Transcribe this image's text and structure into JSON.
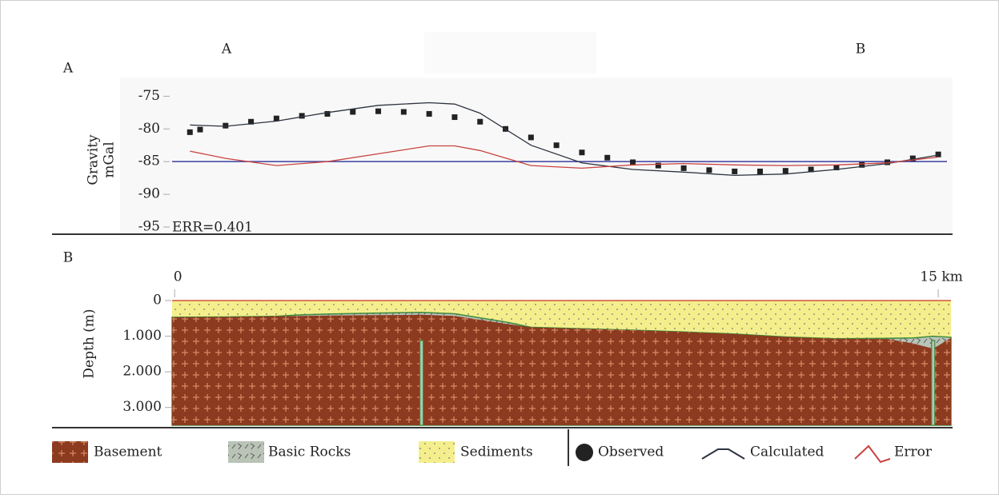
{
  "panel_labels": [
    "A",
    "B"
  ],
  "section_labels": [
    "A",
    "B"
  ],
  "legend_title_note": null,
  "chart_data": [
    {
      "type": "line",
      "ylabel": [
        "Gravity",
        "mGal"
      ],
      "annotation": "ERR=0.401",
      "xlim": [
        -0.05,
        15.25
      ],
      "ylim": [
        -95,
        -73
      ],
      "yticks": [
        -75,
        -80,
        -85,
        -90,
        -95
      ],
      "reference_line": {
        "value": -85,
        "color": "#3b3fa0"
      },
      "series": [
        {
          "name": "Observed",
          "color": "#222222",
          "marker": "square",
          "x": [
            0.3,
            0.5,
            1,
            1.5,
            2,
            2.5,
            3,
            3.5,
            4,
            4.5,
            5,
            5.5,
            6,
            6.5,
            7,
            7.5,
            8,
            8.5,
            9,
            9.5,
            10,
            10.5,
            11,
            11.5,
            12,
            12.5,
            13,
            13.5,
            14,
            14.5,
            15
          ],
          "values": [
            -80.5,
            -80.1,
            -79.5,
            -78.9,
            -78.4,
            -78.0,
            -77.7,
            -77.4,
            -77.3,
            -77.4,
            -77.7,
            -78.2,
            -78.9,
            -80.0,
            -81.3,
            -82.5,
            -83.6,
            -84.4,
            -85.1,
            -85.6,
            -86.0,
            -86.3,
            -86.5,
            -86.5,
            -86.4,
            -86.2,
            -85.9,
            -85.5,
            -85.1,
            -84.5,
            -83.9
          ]
        },
        {
          "name": "Calculated",
          "color": "#2d3340",
          "marker": "line",
          "x": [
            0.3,
            1,
            2,
            3,
            4,
            5,
            5.5,
            6,
            7,
            8,
            9,
            10,
            11,
            12,
            13,
            14,
            15
          ],
          "values": [
            -79.4,
            -79.6,
            -78.8,
            -77.5,
            -76.4,
            -76.0,
            -76.2,
            -77.6,
            -82.5,
            -85.2,
            -86.2,
            -86.6,
            -87.1,
            -86.9,
            -86.2,
            -85.3,
            -84.0
          ]
        },
        {
          "name": "Error",
          "color": "#c8433f",
          "marker": "line",
          "x": [
            0.3,
            1,
            2,
            3,
            4,
            5,
            5.5,
            6,
            7,
            8,
            9,
            10,
            11,
            12,
            13,
            14,
            15
          ],
          "values": [
            -83.4,
            -84.5,
            -85.6,
            -85.0,
            -83.8,
            -82.6,
            -82.6,
            -83.3,
            -85.6,
            -86.0,
            -85.5,
            -85.3,
            -85.5,
            -85.6,
            -85.5,
            -85.2,
            -84.3
          ]
        }
      ]
    },
    {
      "type": "cross-section",
      "ylabel": "Depth (m)",
      "xlim": [
        -0.05,
        15.25
      ],
      "xticks": [
        0,
        {
          "value": 15,
          "label": "15 km"
        }
      ],
      "ylim": [
        0,
        3500
      ],
      "yticks": [
        0,
        {
          "value": 1000,
          "label": "1.000"
        },
        {
          "value": 2000,
          "label": "2.000"
        },
        {
          "value": 3000,
          "label": "3.000"
        }
      ],
      "x": [
        -0.05,
        1,
        2,
        2.5,
        3,
        4,
        4.85,
        5.5,
        6.5,
        7,
        8,
        9,
        10,
        11,
        12,
        13,
        14,
        14.5,
        14.9,
        15.25
      ],
      "series": [
        {
          "name": "Sediments",
          "color": "#f4ef8c",
          "pattern": "dots",
          "values": [
            0,
            0,
            0,
            0,
            0,
            0,
            0,
            0,
            0,
            0,
            0,
            0,
            0,
            0,
            0,
            0,
            0,
            0,
            0,
            0
          ]
        },
        {
          "name": "Basic Rocks",
          "color": "#b9c3b6",
          "pattern": "flecks",
          "values": [
            470,
            460,
            440,
            400,
            380,
            350,
            330,
            370,
            600,
            750,
            790,
            830,
            880,
            940,
            1020,
            1070,
            1060,
            1050,
            1000,
            1030
          ]
        },
        {
          "name": "Basement",
          "color": "#8c3b20",
          "pattern": "crosses",
          "values": [
            470,
            460,
            440,
            430,
            420,
            410,
            400,
            430,
            650,
            750,
            790,
            830,
            880,
            940,
            1020,
            1070,
            1080,
            1200,
            1350,
            1050
          ]
        }
      ],
      "dikes": [
        4.85,
        14.9
      ]
    }
  ]
}
